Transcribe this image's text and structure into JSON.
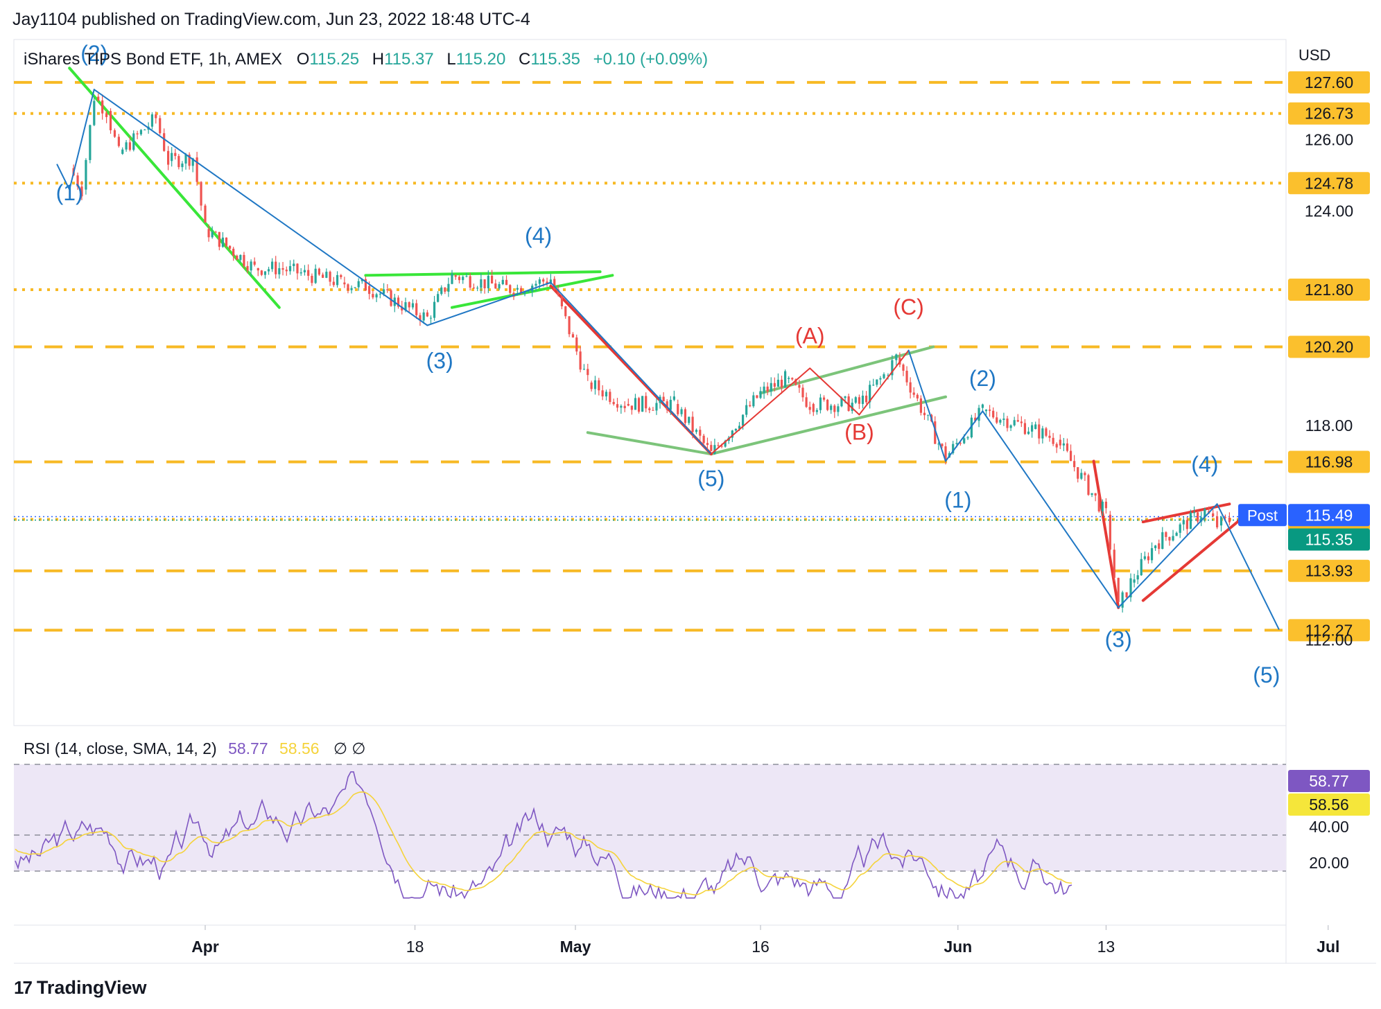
{
  "header": {
    "publisher": "Jay1104 published on TradingView.com, Jun 23, 2022 18:48 UTC-4"
  },
  "legend": {
    "symbol": "iShares TIPS Bond ETF, 1h, AMEX",
    "open_label": "O",
    "open": "115.25",
    "high_label": "H",
    "high": "115.37",
    "low_label": "L",
    "low": "115.20",
    "close_label": "C",
    "close": "115.35",
    "change": "+0.10 (+0.09%)"
  },
  "rsi_legend": {
    "name": "RSI (14, close, SMA, 14, 2)",
    "rsi_value": "58.77",
    "sma_value": "58.56",
    "extras": "∅ ∅"
  },
  "footer": {
    "brand": "TradingView"
  },
  "colors": {
    "up": "#26a69a",
    "down": "#ef5350",
    "wave_blue": "#1f77c4",
    "wave_red": "#e53935",
    "level": "#f7b924",
    "green_line": "#39e639",
    "soft_green": "#7cc47a",
    "rsi": "#7e57c2",
    "rsi_sma": "#f5d33a",
    "rsi_bg": "#ede7f6"
  },
  "chart_data": {
    "type": "candlestick",
    "title": "iShares TIPS Bond ETF, 1h, AMEX",
    "y_unit": "USD",
    "ylim": [
      109.6,
      128.8
    ],
    "y_ticks": [
      "126.00",
      "124.00",
      "118.00",
      "112.00"
    ],
    "x_ticks": [
      "Apr",
      "18",
      "May",
      "16",
      "Jun",
      "13",
      "Jul"
    ],
    "price_path": [
      [
        "Mar 21",
        125.2
      ],
      [
        "Mar 22",
        124.6
      ],
      [
        "Mar 23",
        127.2
      ],
      [
        "Mar 24",
        126.8
      ],
      [
        "Mar 25",
        125.6
      ],
      [
        "Mar 28",
        126.6
      ],
      [
        "Mar 29",
        125.4
      ],
      [
        "Mar 31",
        125.5
      ],
      [
        "Apr 1",
        123.5
      ],
      [
        "Apr 5",
        122.4
      ],
      [
        "Apr 7",
        122.4
      ],
      [
        "Apr 12",
        122.0
      ],
      [
        "Apr 14",
        121.9
      ],
      [
        "Apr 19",
        121.0
      ],
      [
        "Apr 21",
        122.2
      ],
      [
        "Apr 26",
        121.8
      ],
      [
        "Apr 29",
        122.1
      ],
      [
        "May 2",
        119.2
      ],
      [
        "May 5",
        118.6
      ],
      [
        "May 9",
        118.6
      ],
      [
        "May 12",
        117.2
      ],
      [
        "May 16",
        118.9
      ],
      [
        "May 18",
        119.3
      ],
      [
        "May 20",
        118.6
      ],
      [
        "May 24",
        118.6
      ],
      [
        "May 26",
        119.4
      ],
      [
        "May 27",
        119.9
      ],
      [
        "May 31",
        117.1
      ],
      [
        "Jun 3",
        118.4
      ],
      [
        "Jun 7",
        117.9
      ],
      [
        "Jun 9",
        117.6
      ],
      [
        "Jun 13",
        115.5
      ],
      [
        "Jun 14",
        112.9
      ],
      [
        "Jun 15",
        113.6
      ],
      [
        "Jun 17",
        114.7
      ],
      [
        "Jun 21",
        115.6
      ],
      [
        "Jun 22",
        115.2
      ],
      [
        "Jun 23",
        115.35
      ]
    ],
    "levels": [
      {
        "value": 127.6,
        "label": "127.60",
        "style": "dashed"
      },
      {
        "value": 126.73,
        "label": "126.73",
        "style": "dotted"
      },
      {
        "value": 124.78,
        "label": "124.78",
        "style": "dotted"
      },
      {
        "value": 121.8,
        "label": "121.80",
        "style": "dotted"
      },
      {
        "value": 120.2,
        "label": "120.20",
        "style": "dashed"
      },
      {
        "value": 116.98,
        "label": "116.98",
        "style": "dashed"
      },
      {
        "value": 115.37,
        "label": "115.37",
        "style": "dotted"
      },
      {
        "value": 113.93,
        "label": "113.93",
        "style": "dashed"
      },
      {
        "value": 112.27,
        "label": "112.27",
        "style": "dashed"
      }
    ],
    "current_close": {
      "value": 115.35,
      "label": "115.35"
    },
    "post_market": {
      "tag": "Post",
      "value": 115.49,
      "label": "115.49"
    },
    "wave_labels": [
      {
        "text": "(1)",
        "date": "Mar 21",
        "price": 124.3,
        "color": "blue"
      },
      {
        "text": "(2)",
        "date": "Mar 23",
        "price": 128.2,
        "color": "blue"
      },
      {
        "text": "(3)",
        "date": "Apr 20",
        "price": 119.6,
        "color": "blue"
      },
      {
        "text": "(4)",
        "date": "Apr 28",
        "price": 123.1,
        "color": "blue"
      },
      {
        "text": "(5)",
        "date": "May 12",
        "price": 116.3,
        "color": "blue"
      },
      {
        "text": "(A)",
        "date": "May 20",
        "price": 120.3,
        "color": "red"
      },
      {
        "text": "(B)",
        "date": "May 24",
        "price": 117.6,
        "color": "red"
      },
      {
        "text": "(C)",
        "date": "May 28",
        "price": 121.1,
        "color": "red"
      },
      {
        "text": "(1)",
        "date": "Jun 1",
        "price": 115.7,
        "color": "blue"
      },
      {
        "text": "(2)",
        "date": "Jun 3",
        "price": 119.1,
        "color": "blue"
      },
      {
        "text": "(3)",
        "date": "Jun 14",
        "price": 111.8,
        "color": "blue"
      },
      {
        "text": "(4)",
        "date": "Jun 21",
        "price": 116.7,
        "color": "blue"
      },
      {
        "text": "(5)",
        "date": "Jun 26",
        "price": 110.8,
        "color": "blue"
      }
    ],
    "rsi": {
      "ylim": [
        0,
        100
      ],
      "y_ticks": [
        "40.00",
        "20.00"
      ],
      "bands": [
        30,
        50,
        70
      ],
      "last": "58.77",
      "sma_last": "58.56"
    }
  }
}
